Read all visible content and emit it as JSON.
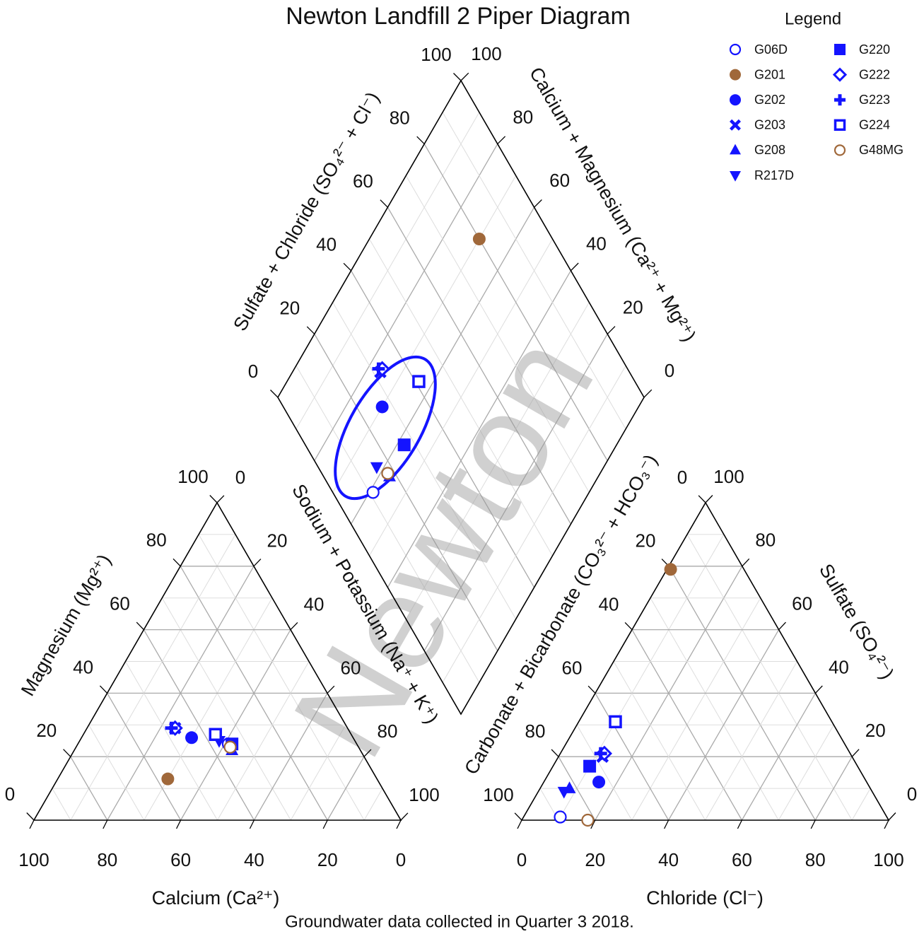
{
  "chart_data": {
    "type": "piper",
    "title": "Newton Landfill 2 Piper Diagram",
    "legend_title": "Legend",
    "footnote": "Groundwater data collected in Quarter 3 2018.",
    "watermark": "Newton",
    "labels": {
      "calcium": "Calcium (Ca²⁺)",
      "magnesium": "Magnesium (Mg²⁺)",
      "sodium_potassium": "Sodium + Potassium (Na⁺ + K⁺)",
      "carbonate_bicarbonate": "Carbonate + Bicarbonate (CO₃²⁻ + HCO₃⁻)",
      "sulfate": "Sulfate (SO₄²⁻)",
      "chloride": "Chloride (Cl⁻)",
      "sulfate_chloride": "Sulfate + Chloride (SO₄²⁻ + Cl⁻)",
      "calcium_magnesium": "Calcium + Magnesium (Ca²⁺ + Mg²⁺)"
    },
    "ticks": [
      0,
      20,
      40,
      60,
      80,
      100
    ],
    "grid": true,
    "series": [
      {
        "name": "G06D",
        "color": "#1414ff",
        "marker": "circle-open",
        "ca": 35,
        "mg": 24,
        "na_k": 41,
        "cl": 10,
        "so4": 1,
        "hco3": 89
      },
      {
        "name": "G201",
        "color": "#a0683a",
        "marker": "circle",
        "ca": 57,
        "mg": 13,
        "na_k": 30,
        "cl": 1,
        "so4": 79,
        "hco3": 20
      },
      {
        "name": "G202",
        "color": "#1414ff",
        "marker": "circle",
        "ca": 44,
        "mg": 26,
        "na_k": 30,
        "cl": 15,
        "so4": 12,
        "hco3": 73
      },
      {
        "name": "G203",
        "color": "#1414ff",
        "marker": "x",
        "ca": 47,
        "mg": 29,
        "na_k": 24,
        "cl": 12,
        "so4": 20,
        "hco3": 68
      },
      {
        "name": "G208",
        "color": "#1414ff",
        "marker": "triangle",
        "ca": 35,
        "mg": 22,
        "na_k": 43,
        "cl": 8,
        "so4": 10,
        "hco3": 82
      },
      {
        "name": "R217D",
        "color": "#1414ff",
        "marker": "triangle-down",
        "ca": 37,
        "mg": 25,
        "na_k": 38,
        "cl": 7,
        "so4": 9,
        "hco3": 84
      },
      {
        "name": "G220",
        "color": "#1414ff",
        "marker": "square",
        "ca": 34,
        "mg": 24,
        "na_k": 42,
        "cl": 10,
        "so4": 17,
        "hco3": 73
      },
      {
        "name": "G222",
        "color": "#1414ff",
        "marker": "diamond-open",
        "ca": 47,
        "mg": 29,
        "na_k": 24,
        "cl": 12,
        "so4": 21,
        "hco3": 67
      },
      {
        "name": "G223",
        "color": "#1414ff",
        "marker": "plus",
        "ca": 48,
        "mg": 29,
        "na_k": 23,
        "cl": 11,
        "so4": 21,
        "hco3": 68
      },
      {
        "name": "G224",
        "color": "#1414ff",
        "marker": "square-open",
        "ca": 37,
        "mg": 27,
        "na_k": 36,
        "cl": 10,
        "so4": 31,
        "hco3": 59
      },
      {
        "name": "G48MG",
        "color": "#a0683a",
        "marker": "circle-open",
        "ca": 35,
        "mg": 23,
        "na_k": 42,
        "cl": 18,
        "so4": 0,
        "hco3": 82
      }
    ]
  }
}
